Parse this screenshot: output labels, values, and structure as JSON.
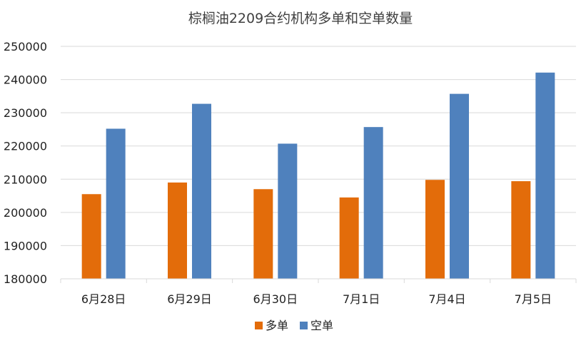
{
  "chart_data": {
    "type": "bar",
    "title": "棕榈油2209合约机构多单和空单数量",
    "xlabel": "",
    "ylabel": "",
    "categories": [
      "6月28日",
      "6月29日",
      "6月30日",
      "7月1日",
      "7月4日",
      "7月5日"
    ],
    "series": [
      {
        "name": "多单",
        "color": "#E36C0A",
        "values": [
          205500,
          209000,
          207000,
          204500,
          209800,
          209400
        ]
      },
      {
        "name": "空单",
        "color": "#4F81BD",
        "values": [
          225200,
          232700,
          220700,
          225700,
          235700,
          242100
        ]
      }
    ],
    "ylim": [
      180000,
      250000
    ],
    "yticks": [
      "180000",
      "190000",
      "200000",
      "210000",
      "220000",
      "230000",
      "240000",
      "250000"
    ],
    "grid": true,
    "legend_position": "bottom"
  }
}
